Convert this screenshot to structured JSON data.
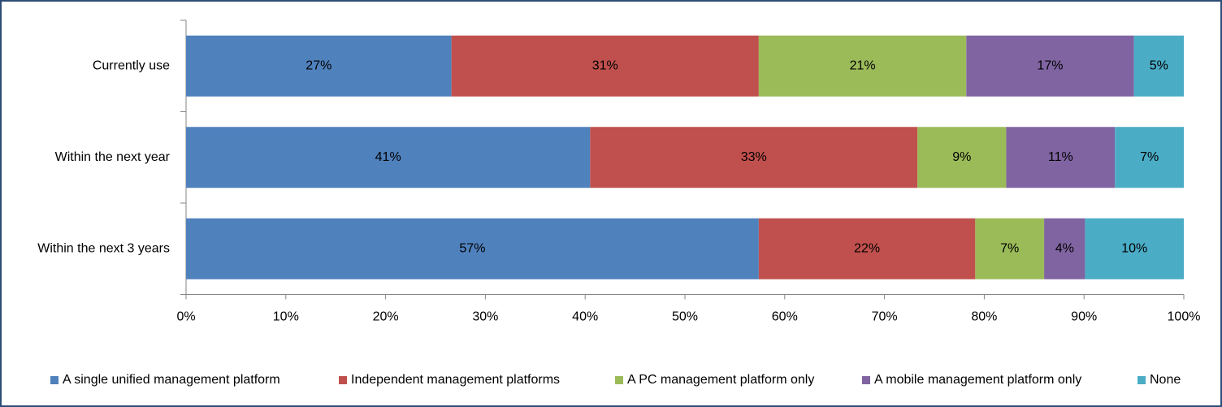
{
  "chart_data": {
    "type": "stacked_barh",
    "categories": [
      "Currently use",
      "Within the next year",
      "Within the next 3 years"
    ],
    "series": [
      {
        "name": "A single unified management platform",
        "color": "#4f81bd",
        "values": [
          26.6,
          40.5,
          57.4
        ],
        "value_labels": [
          "27%",
          "41%",
          "57%"
        ]
      },
      {
        "name": "Independent management platforms",
        "color": "#c0504d",
        "values": [
          30.8,
          32.8,
          21.7
        ],
        "value_labels": [
          "31%",
          "33%",
          "22%"
        ]
      },
      {
        "name": "A PC management platform only",
        "color": "#9bbb59",
        "values": [
          20.8,
          8.9,
          6.9
        ],
        "value_labels": [
          "21%",
          "9%",
          "7%"
        ]
      },
      {
        "name": "A mobile management platform only",
        "color": "#8064a2",
        "values": [
          16.8,
          10.9,
          4.1
        ],
        "value_labels": [
          "17%",
          "11%",
          "4%"
        ]
      },
      {
        "name": "None",
        "color": "#4bacc6",
        "values": [
          5.0,
          6.9,
          9.9
        ],
        "value_labels": [
          "5%",
          "7%",
          "10%"
        ]
      }
    ],
    "xlim": [
      0,
      100
    ],
    "xticks": [
      {
        "value": 0,
        "label": "0%"
      },
      {
        "value": 10,
        "label": "10%"
      },
      {
        "value": 20,
        "label": "20%"
      },
      {
        "value": 30,
        "label": "30%"
      },
      {
        "value": 40,
        "label": "40%"
      },
      {
        "value": 50,
        "label": "50%"
      },
      {
        "value": 60,
        "label": "60%"
      },
      {
        "value": 70,
        "label": "70%"
      },
      {
        "value": 80,
        "label": "80%"
      },
      {
        "value": 90,
        "label": "90%"
      },
      {
        "value": 100,
        "label": "100%"
      }
    ],
    "grid": false,
    "legend": "bottom"
  }
}
